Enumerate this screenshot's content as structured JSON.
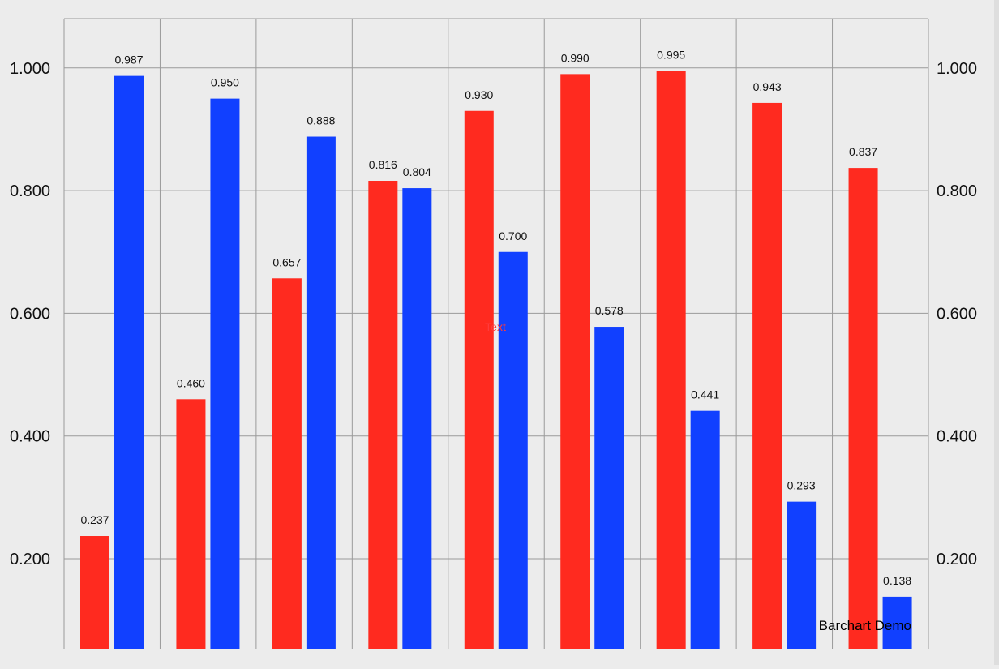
{
  "chart_data": {
    "type": "bar",
    "title": "",
    "caption": "Barchart Demo",
    "annotation": "Text",
    "categories": [
      "",
      "",
      "",
      "",
      "",
      "",
      "",
      "",
      ""
    ],
    "series": [
      {
        "color": "#ff2a1f",
        "values": [
          0.237,
          0.46,
          0.657,
          0.816,
          0.93,
          0.99,
          0.995,
          0.943,
          0.837
        ]
      },
      {
        "color": "#1140ff",
        "values": [
          0.987,
          0.95,
          0.888,
          0.804,
          0.7,
          0.578,
          0.441,
          0.293,
          0.138
        ]
      }
    ],
    "data_labels": [
      [
        "0.237",
        "0.460",
        "0.657",
        "0.816",
        "0.930",
        "0.990",
        "0.995",
        "0.943",
        "0.837"
      ],
      [
        "0.987",
        "0.950",
        "0.888",
        "0.804",
        "0.700",
        "0.578",
        "0.441",
        "0.293",
        "0.138"
      ]
    ],
    "y_ticks": [
      0.2,
      0.4,
      0.6,
      0.8,
      1.0
    ],
    "y_tick_labels": [
      "0.200",
      "0.400",
      "0.600",
      "0.800",
      "1.000"
    ],
    "ylim": [
      0.06,
      1.08
    ],
    "y_axis_sides": [
      "left",
      "right"
    ],
    "grid": true,
    "annotation_color": "#ff3b3b",
    "caption_color": "#000000",
    "background": "#ececec",
    "grid_color": "#9a9a9a"
  }
}
